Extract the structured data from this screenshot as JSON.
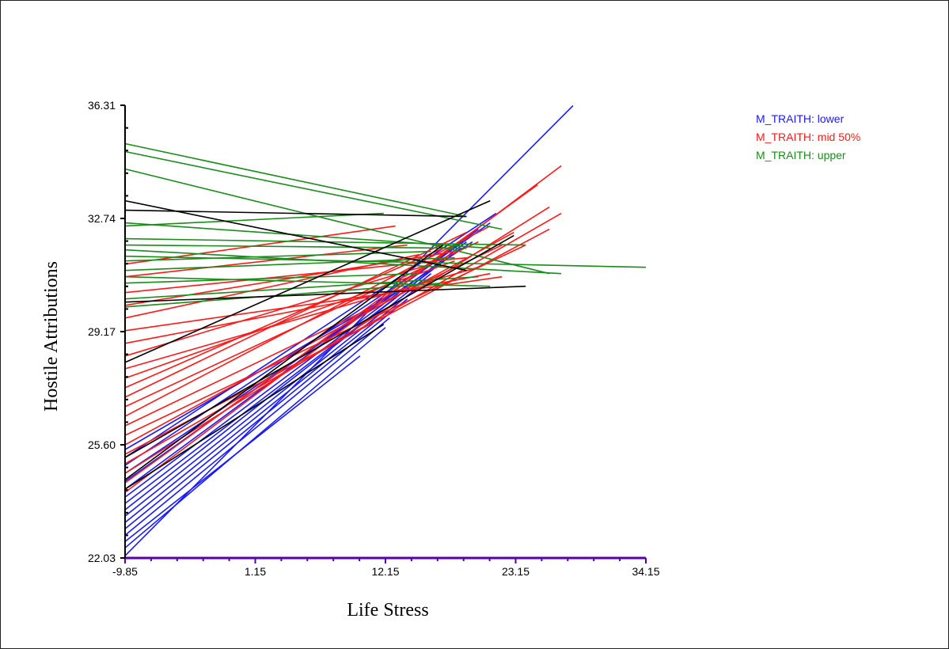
{
  "chart_data": {
    "type": "line",
    "xlabel": "Life Stress",
    "ylabel": "Hostile Attributions",
    "xlim": [
      -9.85,
      34.15
    ],
    "ylim": [
      22.03,
      36.31
    ],
    "x_ticks": [
      "-9.85",
      "1.15",
      "12.15",
      "23.15",
      "34.15"
    ],
    "y_ticks": [
      "22.03",
      "25.60",
      "29.17",
      "32.74",
      "36.31"
    ],
    "legend_position": "top-right",
    "colors": {
      "M_TRAITH: lower": "#1a1aff",
      "M_TRAITH: mid 50%": "#ff1a1a",
      "M_TRAITH: upper": "#1a8c1a",
      "other": "#000000"
    },
    "legend": [
      {
        "label": "M_TRAITH: lower",
        "color": "#1a1aff"
      },
      {
        "label": "M_TRAITH: mid 50%",
        "color": "#ff1a1a"
      },
      {
        "label": "M_TRAITH: upper",
        "color": "#1a8c1a"
      }
    ],
    "series": [
      {
        "name": "M_TRAITH: lower",
        "segments": [
          [
            [
              -9.85,
              22.1
            ],
            [
              28.0,
              36.3
            ]
          ],
          [
            [
              -9.85,
              22.35
            ],
            [
              12.15,
              29.3
            ]
          ],
          [
            [
              -9.85,
              22.55
            ],
            [
              10.0,
              28.4
            ]
          ],
          [
            [
              -9.85,
              22.75
            ],
            [
              12.5,
              29.6
            ]
          ],
          [
            [
              -9.85,
              22.95
            ],
            [
              14.0,
              30.2
            ]
          ],
          [
            [
              -9.85,
              23.15
            ],
            [
              15.0,
              30.6
            ]
          ],
          [
            [
              -9.85,
              23.35
            ],
            [
              16.0,
              31.0
            ]
          ],
          [
            [
              -9.85,
              23.55
            ],
            [
              17.0,
              31.4
            ]
          ],
          [
            [
              -9.85,
              23.75
            ],
            [
              18.5,
              31.8
            ]
          ],
          [
            [
              -9.85,
              23.95
            ],
            [
              19.0,
              32.0
            ]
          ],
          [
            [
              -9.85,
              24.2
            ],
            [
              20.0,
              32.4
            ]
          ],
          [
            [
              -9.85,
              24.45
            ],
            [
              21.0,
              32.6
            ]
          ],
          [
            [
              -9.85,
              24.7
            ],
            [
              19.5,
              32.0
            ]
          ],
          [
            [
              -9.85,
              24.95
            ],
            [
              17.0,
              31.6
            ]
          ],
          [
            [
              -9.85,
              25.2
            ],
            [
              21.5,
              32.9
            ]
          ],
          [
            [
              -9.85,
              25.45
            ],
            [
              13.0,
              30.4
            ]
          ]
        ]
      },
      {
        "name": "M_TRAITH: mid 50%",
        "segments": [
          [
            [
              -9.85,
              24.1
            ],
            [
              27.0,
              34.4
            ]
          ],
          [
            [
              -9.85,
              24.4
            ],
            [
              25.0,
              33.8
            ]
          ],
          [
            [
              -9.85,
              24.7
            ],
            [
              26.0,
              33.1
            ]
          ],
          [
            [
              -9.85,
              25.0
            ],
            [
              27.0,
              32.9
            ]
          ],
          [
            [
              -9.85,
              25.3
            ],
            [
              26.0,
              32.4
            ]
          ],
          [
            [
              -9.85,
              25.6
            ],
            [
              23.0,
              32.3
            ]
          ],
          [
            [
              -9.85,
              25.9
            ],
            [
              24.0,
              31.9
            ]
          ],
          [
            [
              -9.85,
              26.2
            ],
            [
              22.0,
              31.9
            ]
          ],
          [
            [
              -9.85,
              26.5
            ],
            [
              21.0,
              32.5
            ]
          ],
          [
            [
              -9.85,
              26.8
            ],
            [
              20.0,
              32.0
            ]
          ],
          [
            [
              -9.85,
              27.1
            ],
            [
              19.0,
              32.3
            ]
          ],
          [
            [
              -9.85,
              27.4
            ],
            [
              17.0,
              31.8
            ]
          ],
          [
            [
              -9.85,
              27.7
            ],
            [
              18.0,
              31.4
            ]
          ],
          [
            [
              -9.85,
              28.0
            ],
            [
              20.0,
              31.2
            ]
          ],
          [
            [
              -9.85,
              28.4
            ],
            [
              16.0,
              31.3
            ]
          ],
          [
            [
              -9.85,
              28.8
            ],
            [
              21.0,
              31.0
            ]
          ],
          [
            [
              -9.85,
              29.2
            ],
            [
              22.0,
              30.9
            ]
          ],
          [
            [
              -9.85,
              29.6
            ],
            [
              15.0,
              31.6
            ]
          ],
          [
            [
              -9.85,
              30.0
            ],
            [
              18.0,
              31.7
            ]
          ],
          [
            [
              -9.85,
              30.4
            ],
            [
              19.0,
              31.5
            ]
          ],
          [
            [
              -9.85,
              30.9
            ],
            [
              14.0,
              31.9
            ]
          ],
          [
            [
              -9.85,
              31.3
            ],
            [
              13.0,
              32.5
            ]
          ]
        ]
      },
      {
        "name": "M_TRAITH: upper",
        "segments": [
          [
            [
              -9.85,
              35.1
            ],
            [
              19.0,
              32.8
            ]
          ],
          [
            [
              -9.85,
              34.85
            ],
            [
              22.0,
              32.4
            ]
          ],
          [
            [
              -9.85,
              34.3
            ],
            [
              26.0,
              31.0
            ]
          ],
          [
            [
              -9.85,
              32.6
            ],
            [
              21.0,
              31.8
            ]
          ],
          [
            [
              -9.85,
              32.1
            ],
            [
              24.0,
              31.9
            ]
          ],
          [
            [
              -9.85,
              31.9
            ],
            [
              19.0,
              31.8
            ]
          ],
          [
            [
              -9.85,
              31.75
            ],
            [
              27.0,
              31.0
            ]
          ],
          [
            [
              -9.85,
              31.55
            ],
            [
              34.15,
              31.2
            ]
          ],
          [
            [
              -9.85,
              31.4
            ],
            [
              16.0,
              31.7
            ]
          ],
          [
            [
              -9.85,
              31.1
            ],
            [
              18.0,
              31.5
            ]
          ],
          [
            [
              -9.85,
              30.9
            ],
            [
              21.0,
              30.6
            ]
          ],
          [
            [
              -9.85,
              30.7
            ],
            [
              15.0,
              31.0
            ]
          ],
          [
            [
              -9.85,
              30.2
            ],
            [
              20.0,
              30.9
            ]
          ],
          [
            [
              -9.85,
              29.95
            ],
            [
              17.0,
              30.7
            ]
          ],
          [
            [
              -9.85,
              32.5
            ],
            [
              12.0,
              32.9
            ]
          ]
        ]
      },
      {
        "name": "",
        "segments": [
          [
            [
              -9.85,
              33.3
            ],
            [
              19.0,
              31.1
            ]
          ],
          [
            [
              -9.85,
              33.0
            ],
            [
              19.0,
              32.8
            ]
          ],
          [
            [
              -9.85,
              30.1
            ],
            [
              24.0,
              30.6
            ]
          ],
          [
            [
              -9.85,
              28.2
            ],
            [
              21.0,
              33.3
            ]
          ],
          [
            [
              -9.85,
              25.2
            ],
            [
              23.0,
              32.2
            ]
          ],
          [
            [
              -9.85,
              24.5
            ],
            [
              17.0,
              31.9
            ]
          ],
          [
            [
              -9.85,
              24.2
            ],
            [
              12.0,
              29.4
            ]
          ]
        ]
      }
    ]
  }
}
